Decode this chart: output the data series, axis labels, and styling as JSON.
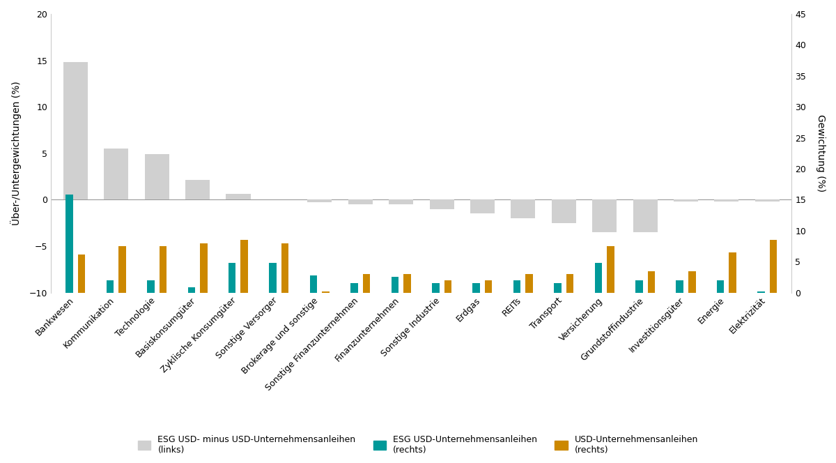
{
  "categories": [
    "Bankwesen",
    "Kommunikation",
    "Technologie",
    "Basiskonsumgüter",
    "Zyklische Konsumgüter",
    "Sonstige Versorger",
    "Brokerage und sonstige",
    "Sonstige Finanzunternehmen",
    "Finanzunternehmen",
    "Sonstige Industrie",
    "Erdgas",
    "REITs",
    "Transport",
    "Versicherung",
    "Grundstoffindustrie",
    "Investitionsgüter",
    "Energie",
    "Elektrizität"
  ],
  "diff_vals": [
    14.8,
    5.5,
    4.9,
    2.1,
    0.6,
    0.0,
    -0.3,
    -0.5,
    -0.5,
    -1.0,
    -1.5,
    -2.0,
    -2.5,
    -3.5,
    -3.5,
    -0.2,
    -0.2,
    -0.2
  ],
  "esg_right_vals": [
    15.8,
    2.0,
    2.0,
    0.9,
    4.8,
    4.8,
    2.8,
    1.5,
    2.5,
    1.5,
    1.5,
    2.0,
    1.5,
    4.8,
    2.0,
    2.0,
    2.0,
    0.2
  ],
  "usd_right_vals": [
    6.1,
    7.5,
    7.5,
    8.0,
    8.5,
    8.0,
    0.2,
    3.0,
    3.0,
    2.0,
    2.0,
    3.0,
    3.0,
    7.5,
    3.5,
    3.5,
    6.5,
    8.5
  ],
  "diff_color": "#d0d0d0",
  "esg_color": "#009999",
  "usd_color": "#cc8800",
  "ylim_left": [
    -10,
    20
  ],
  "ylim_right": [
    0,
    45
  ],
  "ylabel_left": "Über-/Untergewichtungen (%)",
  "ylabel_right": "Gewichtung (%)",
  "yticks_left": [
    -10,
    -5,
    0,
    5,
    10,
    15,
    20
  ],
  "yticks_right": [
    0,
    5,
    10,
    15,
    20,
    25,
    30,
    35,
    40,
    45
  ],
  "legend_labels": [
    "ESG USD- minus USD-Unternehmensanleihen\n(links)",
    "ESG USD-Unternehmensanleihen\n(rechts)",
    "USD-Unternehmensanleihen\n(rechts)"
  ],
  "background_color": "#ffffff"
}
